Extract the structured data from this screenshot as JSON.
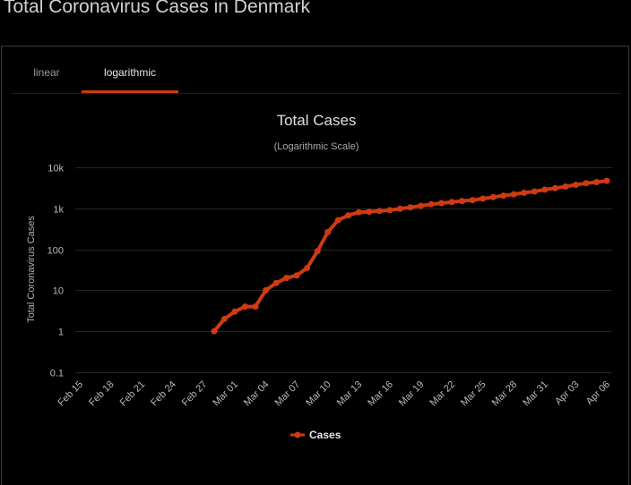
{
  "page": {
    "title": "Total Coronavirus Cases in Denmark"
  },
  "tabs": [
    {
      "label": "linear",
      "active": false
    },
    {
      "label": "logarithmic",
      "active": true
    }
  ],
  "colors": {
    "series": "#cf3a12",
    "background": "#000000",
    "grid": "#262626"
  },
  "chart_data": {
    "type": "line",
    "title": "Total Cases",
    "subtitle": "(Logarithmic Scale)",
    "ylabel": "Total Coronavirus Cases",
    "xlabel": "",
    "yscale": "log",
    "ylim": [
      0.1,
      10000
    ],
    "y_ticks": [
      0.1,
      1,
      10,
      100,
      1000,
      10000
    ],
    "y_tick_labels": [
      "0.1",
      "1",
      "10",
      "100",
      "1k",
      "10k"
    ],
    "x_tick_labels": [
      "Feb 15",
      "Feb 18",
      "Feb 21",
      "Feb 24",
      "Feb 27",
      "Mar 01",
      "Mar 04",
      "Mar 07",
      "Mar 10",
      "Mar 13",
      "Mar 16",
      "Mar 19",
      "Mar 22",
      "Mar 25",
      "Mar 28",
      "Mar 31",
      "Apr 03",
      "Apr 06"
    ],
    "x": [
      "Feb 15",
      "Feb 16",
      "Feb 17",
      "Feb 18",
      "Feb 19",
      "Feb 20",
      "Feb 21",
      "Feb 22",
      "Feb 23",
      "Feb 24",
      "Feb 25",
      "Feb 26",
      "Feb 27",
      "Feb 28",
      "Feb 29",
      "Mar 01",
      "Mar 02",
      "Mar 03",
      "Mar 04",
      "Mar 05",
      "Mar 06",
      "Mar 07",
      "Mar 08",
      "Mar 09",
      "Mar 10",
      "Mar 11",
      "Mar 12",
      "Mar 13",
      "Mar 14",
      "Mar 15",
      "Mar 16",
      "Mar 17",
      "Mar 18",
      "Mar 19",
      "Mar 20",
      "Mar 21",
      "Mar 22",
      "Mar 23",
      "Mar 24",
      "Mar 25",
      "Mar 26",
      "Mar 27",
      "Mar 28",
      "Mar 29",
      "Mar 30",
      "Mar 31",
      "Apr 01",
      "Apr 02",
      "Apr 03",
      "Apr 04",
      "Apr 05",
      "Apr 06"
    ],
    "legend": "bottom-center",
    "grid": true,
    "series": [
      {
        "name": "Cases",
        "values": [
          null,
          null,
          null,
          null,
          null,
          null,
          null,
          null,
          null,
          null,
          null,
          null,
          null,
          1,
          2,
          3,
          4,
          4,
          10,
          15,
          20,
          23,
          35,
          90,
          262,
          514,
          674,
          801,
          827,
          864,
          898,
          977,
          1057,
          1151,
          1255,
          1337,
          1420,
          1514,
          1591,
          1724,
          1877,
          2046,
          2201,
          2395,
          2577,
          2860,
          3107,
          3386,
          3757,
          4077,
          4369,
          4681
        ]
      }
    ]
  }
}
